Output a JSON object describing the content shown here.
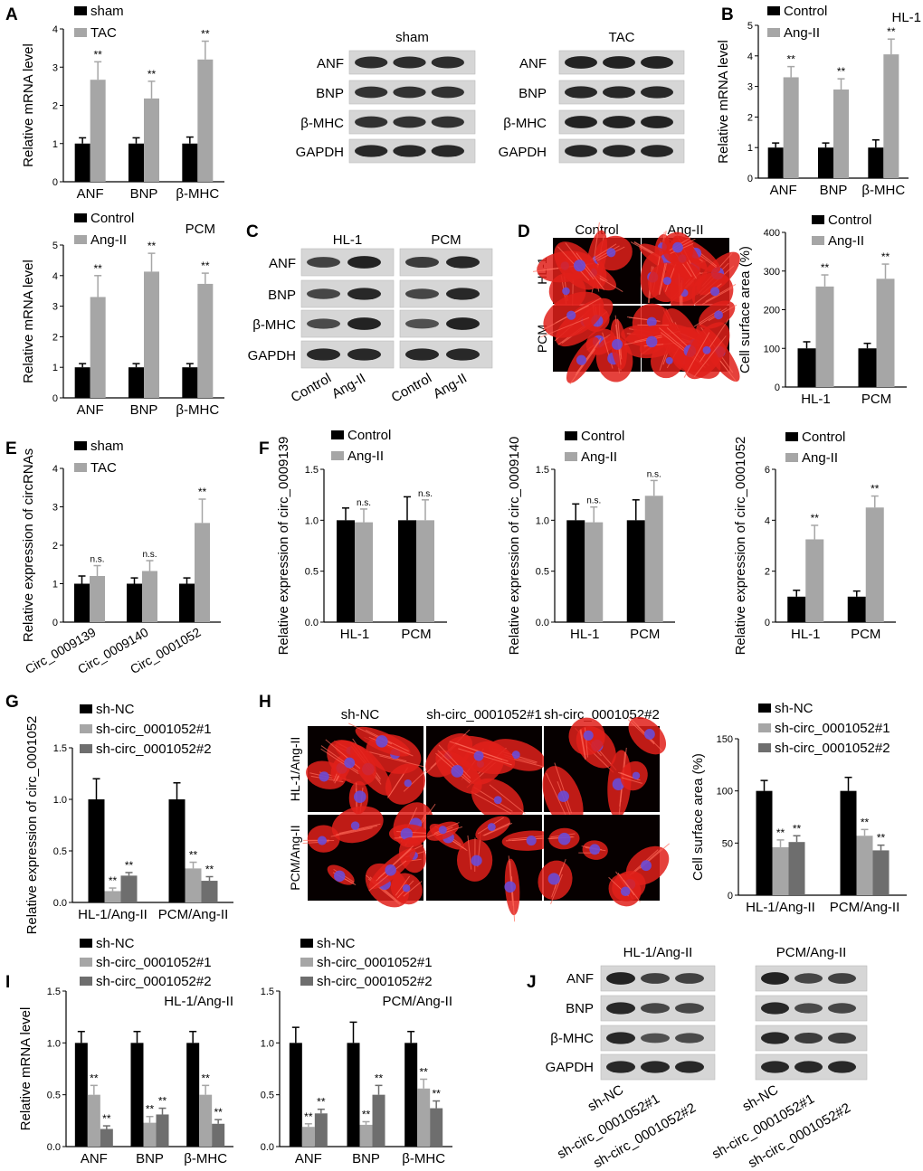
{
  "colors": {
    "control": "#000000",
    "treat": "#a6a6a6",
    "sh2": "#6e6e6e",
    "cell_bg": "#060000",
    "actin": "#e0201a",
    "nucleus": "#6a4bd6"
  },
  "panel_letters": [
    "A",
    "B",
    "C",
    "D",
    "E",
    "F",
    "G",
    "H",
    "I",
    "J"
  ],
  "chart_data": [
    {
      "panel": "A",
      "type": "bar",
      "categories": [
        "ANF",
        "BNP",
        "β-MHC"
      ],
      "series": [
        {
          "name": "sham",
          "values": [
            1.0,
            1.0,
            1.0
          ],
          "errors": [
            0.15,
            0.15,
            0.17
          ]
        },
        {
          "name": "TAC",
          "values": [
            2.67,
            2.18,
            3.2
          ],
          "errors": [
            0.47,
            0.45,
            0.48
          ]
        }
      ],
      "significance": [
        [
          "",
          "**"
        ],
        [
          "",
          "**"
        ],
        [
          "",
          "**"
        ]
      ],
      "ylabel": "Relative mRNA level",
      "ylim": [
        0,
        4
      ],
      "yticks": [
        "0",
        "1",
        "2",
        "3",
        "4"
      ],
      "title": ""
    },
    {
      "panel": "B",
      "type": "bar",
      "categories": [
        "ANF",
        "BNP",
        "β-MHC"
      ],
      "series": [
        {
          "name": "Control",
          "values": [
            1.0,
            1.0,
            1.0
          ],
          "errors": [
            0.15,
            0.15,
            0.25
          ]
        },
        {
          "name": "Ang-II",
          "values": [
            3.3,
            2.9,
            4.05
          ],
          "errors": [
            0.35,
            0.35,
            0.5
          ]
        }
      ],
      "significance": [
        [
          "",
          "**"
        ],
        [
          "",
          "**"
        ],
        [
          "",
          "**"
        ]
      ],
      "ylabel": "Relative mRNA level",
      "ylim": [
        0,
        5
      ],
      "yticks": [
        "0",
        "1",
        "2",
        "3",
        "4",
        "5"
      ],
      "title": "HL-1"
    },
    {
      "panel": "A2",
      "type": "bar",
      "categories": [
        "ANF",
        "BNP",
        "β-MHC"
      ],
      "series": [
        {
          "name": "Control",
          "values": [
            1.0,
            1.0,
            1.0
          ],
          "errors": [
            0.12,
            0.12,
            0.12
          ]
        },
        {
          "name": "Ang-II",
          "values": [
            3.3,
            4.13,
            3.73
          ],
          "errors": [
            0.7,
            0.6,
            0.35
          ]
        }
      ],
      "significance": [
        [
          "",
          "**"
        ],
        [
          "",
          "**"
        ],
        [
          "",
          "**"
        ]
      ],
      "ylabel": "Relative mRNA level",
      "ylim": [
        0,
        5
      ],
      "yticks": [
        "0",
        "1",
        "2",
        "3",
        "4",
        "5"
      ],
      "title": "PCM"
    },
    {
      "panel": "D",
      "type": "bar",
      "categories": [
        "HL-1",
        "PCM"
      ],
      "series": [
        {
          "name": "Control",
          "values": [
            100,
            100
          ],
          "errors": [
            17,
            13
          ]
        },
        {
          "name": "Ang-II",
          "values": [
            260,
            280
          ],
          "errors": [
            30,
            38
          ]
        }
      ],
      "significance": [
        [
          "",
          "**"
        ],
        [
          "",
          "**"
        ]
      ],
      "ylabel": "Cell surface area (%)",
      "ylim": [
        0,
        400
      ],
      "yticks": [
        "0",
        "100",
        "200",
        "300",
        "400"
      ],
      "title": ""
    },
    {
      "panel": "E",
      "type": "bar",
      "categories": [
        "Circ_0009139",
        "Circ_0009140",
        "Circ_0001052"
      ],
      "series": [
        {
          "name": "sham",
          "values": [
            1.0,
            1.0,
            1.0
          ],
          "errors": [
            0.2,
            0.15,
            0.15
          ]
        },
        {
          "name": "TAC",
          "values": [
            1.2,
            1.33,
            2.58
          ],
          "errors": [
            0.27,
            0.27,
            0.62
          ]
        }
      ],
      "significance": [
        [
          "",
          "n.s."
        ],
        [
          "",
          "n.s."
        ],
        [
          "",
          "**"
        ]
      ],
      "ylabel": "Relative expression of circRNAs",
      "ylim": [
        0,
        4
      ],
      "yticks": [
        "0",
        "1",
        "2",
        "3",
        "4"
      ],
      "title": ""
    },
    {
      "panel": "F1",
      "type": "bar",
      "categories": [
        "HL-1",
        "PCM"
      ],
      "series": [
        {
          "name": "Control",
          "values": [
            1.0,
            1.0
          ],
          "errors": [
            0.12,
            0.23
          ]
        },
        {
          "name": "Ang-II",
          "values": [
            0.98,
            1.0
          ],
          "errors": [
            0.13,
            0.2
          ]
        }
      ],
      "significance": [
        [
          "",
          "n.s."
        ],
        [
          "",
          "n.s."
        ]
      ],
      "ylabel": "Relative expression of circ_0009139",
      "ylim": [
        0,
        1.5
      ],
      "yticks": [
        "0.0",
        "0.5",
        "1.0",
        "1.5"
      ],
      "title": ""
    },
    {
      "panel": "F2",
      "type": "bar",
      "categories": [
        "HL-1",
        "PCM"
      ],
      "series": [
        {
          "name": "Control",
          "values": [
            1.0,
            1.0
          ],
          "errors": [
            0.16,
            0.2
          ]
        },
        {
          "name": "Ang-II",
          "values": [
            0.98,
            1.24
          ],
          "errors": [
            0.15,
            0.15
          ]
        }
      ],
      "significance": [
        [
          "",
          "n.s."
        ],
        [
          "",
          "n.s."
        ]
      ],
      "ylabel": "Relative expression of circ_0009140",
      "ylim": [
        0,
        1.5
      ],
      "yticks": [
        "0.0",
        "0.5",
        "1.0",
        "1.5"
      ],
      "title": ""
    },
    {
      "panel": "F3",
      "type": "bar",
      "categories": [
        "HL-1",
        "PCM"
      ],
      "series": [
        {
          "name": "Control",
          "values": [
            1.0,
            1.0
          ],
          "errors": [
            0.25,
            0.22
          ]
        },
        {
          "name": "Ang-II",
          "values": [
            3.25,
            4.5
          ],
          "errors": [
            0.55,
            0.45
          ]
        }
      ],
      "significance": [
        [
          "",
          "**"
        ],
        [
          "",
          "**"
        ]
      ],
      "ylabel": "Relative expression of circ_0001052",
      "ylim": [
        0,
        6
      ],
      "yticks": [
        "0",
        "2",
        "4",
        "6"
      ],
      "title": ""
    },
    {
      "panel": "G",
      "type": "bar",
      "categories": [
        "HL-1/Ang-II",
        "PCM/Ang-II"
      ],
      "series": [
        {
          "name": "sh-NC",
          "values": [
            1.0,
            1.0
          ],
          "errors": [
            0.2,
            0.16
          ]
        },
        {
          "name": "sh-circ_0001052#1",
          "values": [
            0.11,
            0.33
          ],
          "errors": [
            0.03,
            0.06
          ]
        },
        {
          "name": "sh-circ_0001052#2",
          "values": [
            0.26,
            0.21
          ],
          "errors": [
            0.03,
            0.04
          ]
        }
      ],
      "significance": [
        [
          "",
          "**",
          "**"
        ],
        [
          "",
          "**",
          "**"
        ]
      ],
      "ylabel": "Relative expression of circ_0001052",
      "ylim": [
        0,
        1.5
      ],
      "yticks": [
        "0.0",
        "0.5",
        "1.0",
        "1.5"
      ],
      "title": ""
    },
    {
      "panel": "H",
      "type": "bar",
      "categories": [
        "HL-1/Ang-II",
        "PCM/Ang-II"
      ],
      "series": [
        {
          "name": "sh-NC",
          "values": [
            100,
            100
          ],
          "errors": [
            10,
            13
          ]
        },
        {
          "name": "sh-circ_0001052#1",
          "values": [
            46,
            57
          ],
          "errors": [
            7,
            6
          ]
        },
        {
          "name": "sh-circ_0001052#2",
          "values": [
            51,
            43
          ],
          "errors": [
            6,
            5
          ]
        }
      ],
      "significance": [
        [
          "",
          "**",
          "**"
        ],
        [
          "",
          "**",
          "**"
        ]
      ],
      "ylabel": "Cell surface area (%)",
      "ylim": [
        0,
        150
      ],
      "yticks": [
        "0",
        "50",
        "100",
        "150"
      ],
      "title": ""
    },
    {
      "panel": "I1",
      "type": "bar",
      "categories": [
        "ANF",
        "BNP",
        "β-MHC"
      ],
      "series": [
        {
          "name": "sh-NC",
          "values": [
            1.0,
            1.0,
            1.0
          ],
          "errors": [
            0.11,
            0.11,
            0.11
          ]
        },
        {
          "name": "sh-circ_0001052#1",
          "values": [
            0.5,
            0.23,
            0.5
          ],
          "errors": [
            0.09,
            0.06,
            0.09
          ]
        },
        {
          "name": "sh-circ_0001052#2",
          "values": [
            0.17,
            0.31,
            0.22
          ],
          "errors": [
            0.03,
            0.06,
            0.04
          ]
        }
      ],
      "significance": [
        [
          "",
          "**",
          "**"
        ],
        [
          "",
          "**",
          "**"
        ],
        [
          "",
          "**",
          "**"
        ]
      ],
      "ylabel": "Relative mRNA level",
      "ylim": [
        0,
        1.5
      ],
      "yticks": [
        "0.0",
        "0.5",
        "1.0",
        "1.5"
      ],
      "title": "HL-1/Ang-II"
    },
    {
      "panel": "I2",
      "type": "bar",
      "categories": [
        "ANF",
        "BNP",
        "β-MHC"
      ],
      "series": [
        {
          "name": "sh-NC",
          "values": [
            1.0,
            1.0,
            1.0
          ],
          "errors": [
            0.15,
            0.2,
            0.11
          ]
        },
        {
          "name": "sh-circ_0001052#1",
          "values": [
            0.19,
            0.21,
            0.56
          ],
          "errors": [
            0.03,
            0.03,
            0.09
          ]
        },
        {
          "name": "sh-circ_0001052#2",
          "values": [
            0.32,
            0.5,
            0.37
          ],
          "errors": [
            0.04,
            0.09,
            0.07
          ]
        }
      ],
      "significance": [
        [
          "",
          "**",
          "**"
        ],
        [
          "",
          "**",
          "**"
        ],
        [
          "",
          "**",
          "**"
        ]
      ],
      "ylabel": "",
      "ylim": [
        0,
        1.5
      ],
      "yticks": [
        "0.0",
        "0.5",
        "1.0",
        "1.5"
      ],
      "title": "PCM/Ang-II"
    }
  ],
  "blots": {
    "A": {
      "proteins": [
        "ANF",
        "BNP",
        "β-MHC",
        "GAPDH"
      ],
      "groups": [
        {
          "title": "sham",
          "intensity": [
            0.85,
            0.8,
            0.8,
            0.9
          ]
        },
        {
          "title": "TAC",
          "intensity": [
            0.95,
            0.9,
            0.95,
            0.92
          ]
        }
      ]
    },
    "C": {
      "proteins": [
        "ANF",
        "BNP",
        "β-MHC",
        "GAPDH"
      ],
      "groups": [
        {
          "title": "HL-1",
          "intensity": [
            [
              0.65,
              0.95
            ],
            [
              0.6,
              0.9
            ],
            [
              0.55,
              0.95
            ],
            [
              0.9,
              0.9
            ]
          ]
        },
        {
          "title": "PCM",
          "intensity": [
            [
              0.7,
              0.9
            ],
            [
              0.6,
              0.9
            ],
            [
              0.5,
              0.95
            ],
            [
              0.9,
              0.9
            ]
          ]
        }
      ],
      "lanes": [
        "Control",
        "Ang-II",
        "Control",
        "Ang-II"
      ]
    },
    "J": {
      "proteins": [
        "ANF",
        "BNP",
        "β-MHC",
        "GAPDH"
      ],
      "groups": [
        {
          "title": "HL-1/Ang-II",
          "intensity": [
            [
              0.95,
              0.65,
              0.65
            ],
            [
              0.9,
              0.6,
              0.6
            ],
            [
              0.9,
              0.5,
              0.55
            ],
            [
              0.9,
              0.9,
              0.9
            ]
          ]
        },
        {
          "title": "PCM/Ang-II",
          "intensity": [
            [
              0.95,
              0.6,
              0.65
            ],
            [
              0.9,
              0.55,
              0.6
            ],
            [
              0.9,
              0.7,
              0.7
            ],
            [
              0.9,
              0.9,
              0.9
            ]
          ]
        }
      ],
      "lanes": [
        "sh-NC",
        "sh-circ_0001052#1",
        "sh-circ_0001052#2"
      ]
    }
  },
  "micrographs": {
    "D": {
      "columns": [
        "Control",
        "Ang-II"
      ],
      "rows": [
        "HL-1",
        "PCM"
      ]
    },
    "H": {
      "columns": [
        "sh-NC",
        "sh-circ_0001052#1",
        "sh-circ_0001052#2"
      ],
      "rows": [
        "HL-1/Ang-II",
        "PCM/Ang-II"
      ]
    }
  }
}
